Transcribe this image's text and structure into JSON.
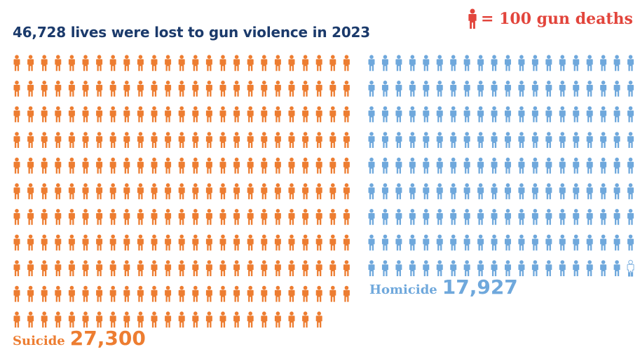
{
  "title": "46,728 lives were lost to gun violence in 2023",
  "legend": {
    "text": "= 100 gun deaths",
    "icon": "person-icon",
    "color": "#e2453c"
  },
  "colors": {
    "suicide": "#ed7d31",
    "homicide": "#6fa8dc",
    "title": "#1b3a6b"
  },
  "chart_data": {
    "type": "pictogram",
    "title": "46,728 lives were lost to gun violence in 2023",
    "unit_per_icon": 100,
    "legend_label": "= 100 gun deaths",
    "series": [
      {
        "name": "Suicide",
        "value": 27300,
        "value_label": "27,300",
        "icons": 273,
        "columns": 25,
        "color": "#ed7d31"
      },
      {
        "name": "Homicide",
        "value": 17927,
        "value_label": "17,927",
        "icons": 179.27,
        "columns": 20,
        "color": "#6fa8dc"
      }
    ]
  }
}
